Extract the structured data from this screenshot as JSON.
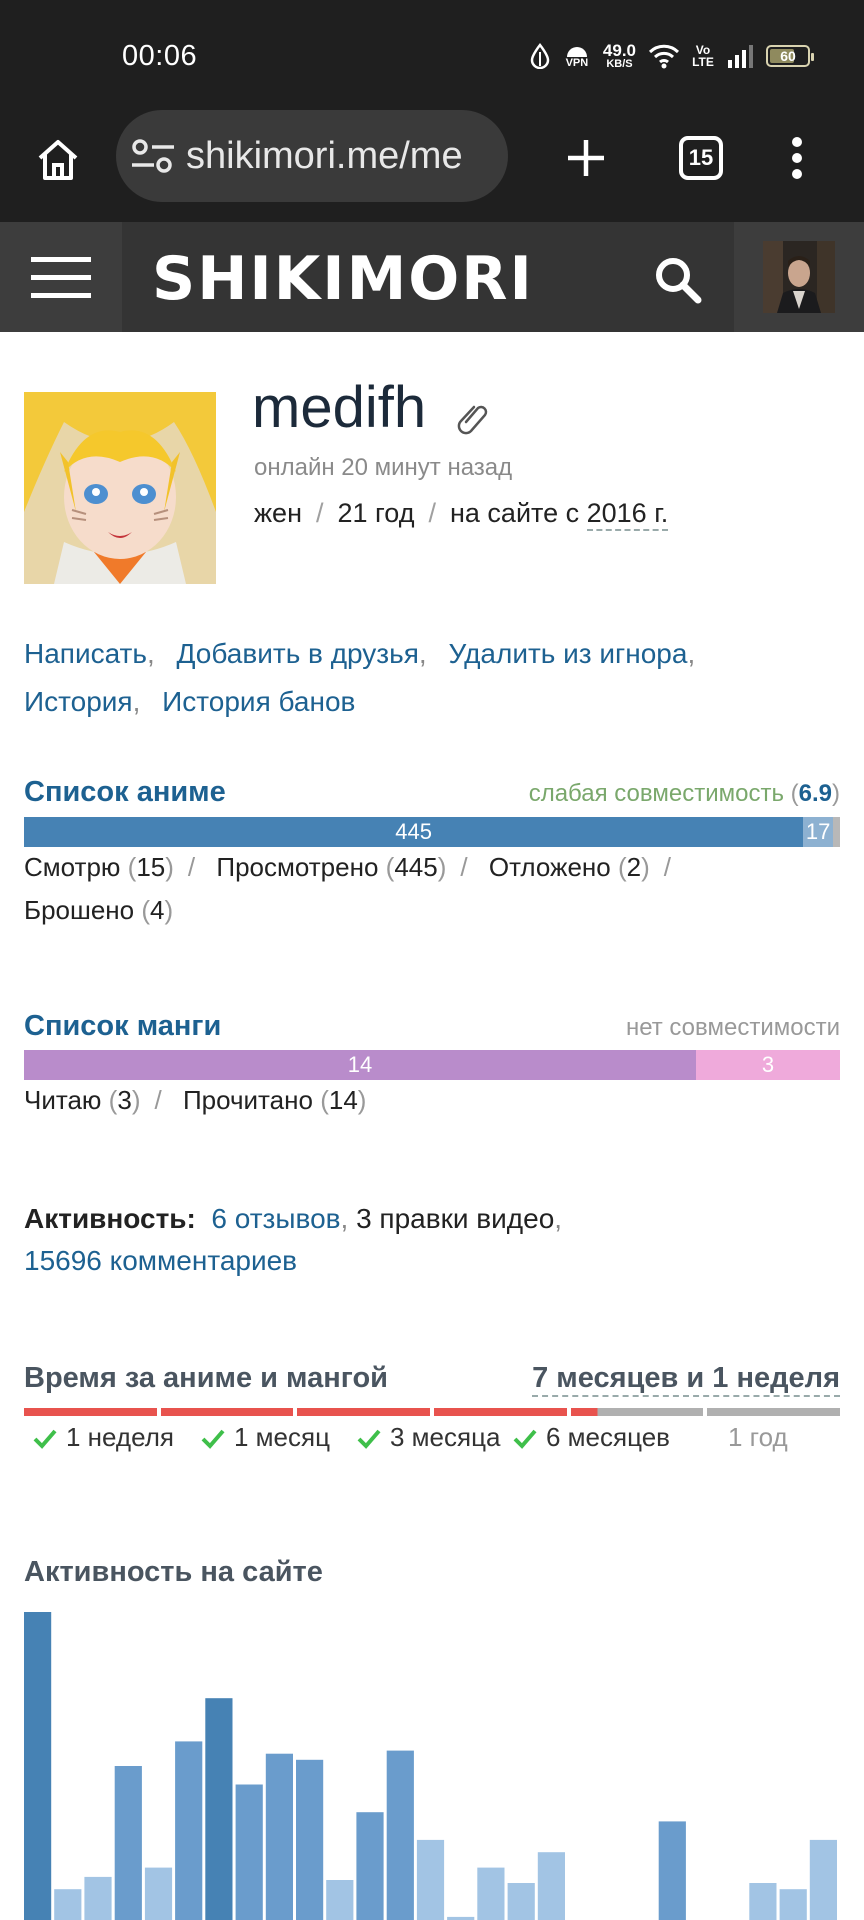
{
  "status_bar": {
    "time": "00:06",
    "vpn_label": "VPN",
    "net_speed_value": "49.0",
    "net_speed_unit": "KB/S",
    "volte_label": "Vo LTE",
    "battery": "60"
  },
  "browser": {
    "url": "shikimori.me/me",
    "tab_count": "15"
  },
  "site": {
    "logo": "SHIKIMORI"
  },
  "profile": {
    "nickname": "medifh",
    "online_status": "онлайн 20 минут назад",
    "gender": "жен",
    "age": "21 год",
    "since_prefix": "на сайте с",
    "since_year": "2016 г."
  },
  "actions": {
    "write": "Написать",
    "add_friend": "Добавить в друзья",
    "unignore": "Удалить из игнора",
    "history": "История",
    "ban_history": "История банов"
  },
  "anime_list": {
    "title": "Список аниме",
    "compat_label": "слабая совместимость",
    "compat_value": "6.9",
    "bar": [
      {
        "label": "445",
        "value": 445,
        "color": "#4682b4"
      },
      {
        "label": "17",
        "value": 17,
        "color": "#8db1d1"
      },
      {
        "label": "",
        "value": 4,
        "color": "#b8b8b8"
      }
    ],
    "stats": [
      {
        "label": "Смотрю",
        "count": "15"
      },
      {
        "label": "Просмотрено",
        "count": "445"
      },
      {
        "label": "Отложено",
        "count": "2"
      },
      {
        "label": "Брошено",
        "count": "4"
      }
    ]
  },
  "manga_list": {
    "title": "Список манги",
    "compat_label": "нет совместимости",
    "bar": [
      {
        "label": "14",
        "value": 14,
        "color": "#b98ccb"
      },
      {
        "label": "3",
        "value": 3,
        "color": "#efaadb"
      }
    ],
    "stats": [
      {
        "label": "Читаю",
        "count": "3"
      },
      {
        "label": "Прочитано",
        "count": "14"
      }
    ]
  },
  "activity": {
    "label": "Активность:",
    "reviews": "6 отзывов",
    "video_edits": "3 правки видео",
    "comments": "15696 комментариев"
  },
  "time_spent": {
    "title": "Время за аниме и мангой",
    "total": "7 месяцев и 1 неделя",
    "progress": 0.7,
    "milestones": [
      {
        "label": "1 неделя",
        "reached": true
      },
      {
        "label": "1 месяц",
        "reached": true
      },
      {
        "label": "3 месяца",
        "reached": true
      },
      {
        "label": "6 месяцев",
        "reached": true
      },
      {
        "label": "1 год",
        "reached": false
      }
    ],
    "colors": {
      "reached": "#e8534e",
      "not_reached": "#b0b0b0",
      "check": "#3fbf4a"
    }
  },
  "site_activity": {
    "title": "Активность на сайте"
  },
  "chart_data": {
    "type": "bar",
    "values": [
      100,
      10,
      14,
      50,
      17,
      58,
      72,
      44,
      54,
      52,
      13,
      35,
      55,
      26,
      1,
      17,
      12,
      22,
      0,
      0,
      0,
      32,
      0,
      0,
      12,
      10,
      26
    ],
    "ylim": [
      0,
      100
    ],
    "color_dark": "#4682b4",
    "color_light": "#a2c4e4"
  }
}
